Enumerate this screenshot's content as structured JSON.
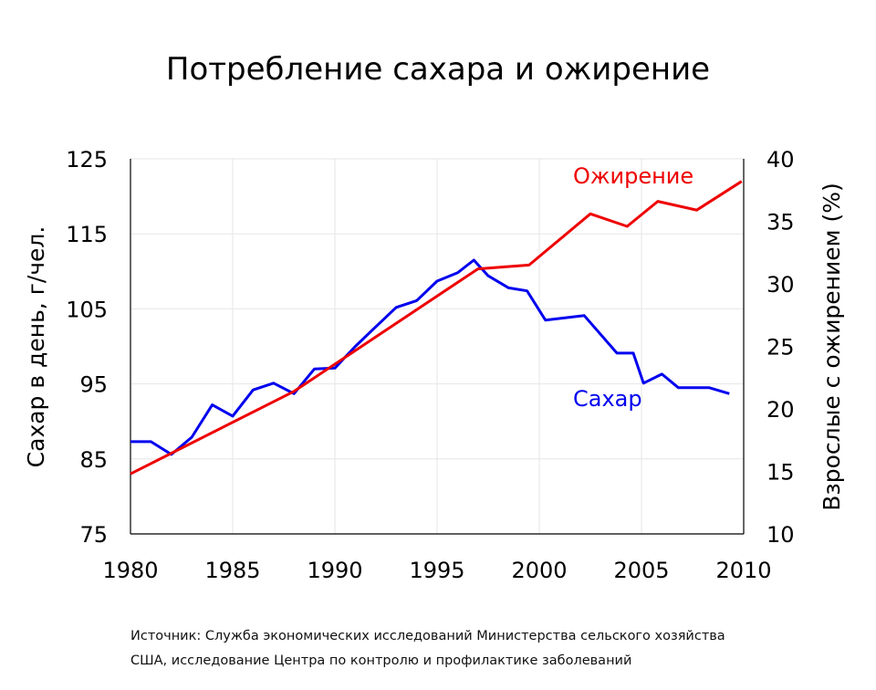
{
  "chart_data": {
    "type": "line",
    "title": "Потребление сахара и ожирение",
    "xlabel": "",
    "ylabel": "Сахар в день, г/чел.",
    "y2label": "Взрослые с ожирением (%)",
    "xlim": [
      1980,
      2010
    ],
    "ylim": [
      75,
      125
    ],
    "y2lim": [
      10,
      40
    ],
    "x_ticks": [
      "1980",
      "1985",
      "1990",
      "1995",
      "2000",
      "2005",
      "2010"
    ],
    "y_ticks": [
      "75",
      "85",
      "95",
      "105",
      "115",
      "125"
    ],
    "y2_ticks": [
      "10",
      "15",
      "20",
      "25",
      "30",
      "35",
      "40"
    ],
    "grid": true,
    "series": [
      {
        "name": "Сахар",
        "axis": "left",
        "color": "#0000ee",
        "x": [
          1980,
          1981,
          1982,
          1983,
          1984,
          1985,
          1986,
          1987,
          1988,
          1989,
          1990,
          1991,
          1992,
          1993,
          1994,
          1995,
          1996,
          1996.8,
          1997.5,
          1998.5,
          1999.4,
          2000.3,
          2002.2,
          2003.8,
          2004.6,
          2005.1,
          2006,
          2006.8,
          2008.3,
          2009.3
        ],
        "values": [
          87.3,
          87.3,
          85.6,
          87.9,
          92.2,
          90.7,
          94.2,
          95.1,
          93.7,
          97.0,
          97.1,
          100.0,
          102.6,
          105.2,
          106.1,
          108.7,
          109.8,
          111.5,
          109.4,
          107.8,
          107.4,
          103.5,
          104.1,
          99.1,
          99.1,
          95.1,
          96.3,
          94.5,
          94.5,
          93.7
        ]
      },
      {
        "name": "Ожирение",
        "axis": "right",
        "color": "#ee0000",
        "x": [
          1980,
          1988,
          1997,
          1999.5,
          2002.5,
          2004.3,
          2005.8,
          2007.7,
          2009.9
        ],
        "values": [
          14.8,
          21.4,
          31.2,
          31.5,
          35.6,
          34.6,
          36.6,
          35.9,
          38.2
        ]
      }
    ]
  },
  "source": {
    "line1": "Источник: Служба экономических исследований Министерства сельского хозяйства",
    "line2": "США, исследование Центра по контролю и профилактике заболеваний"
  }
}
